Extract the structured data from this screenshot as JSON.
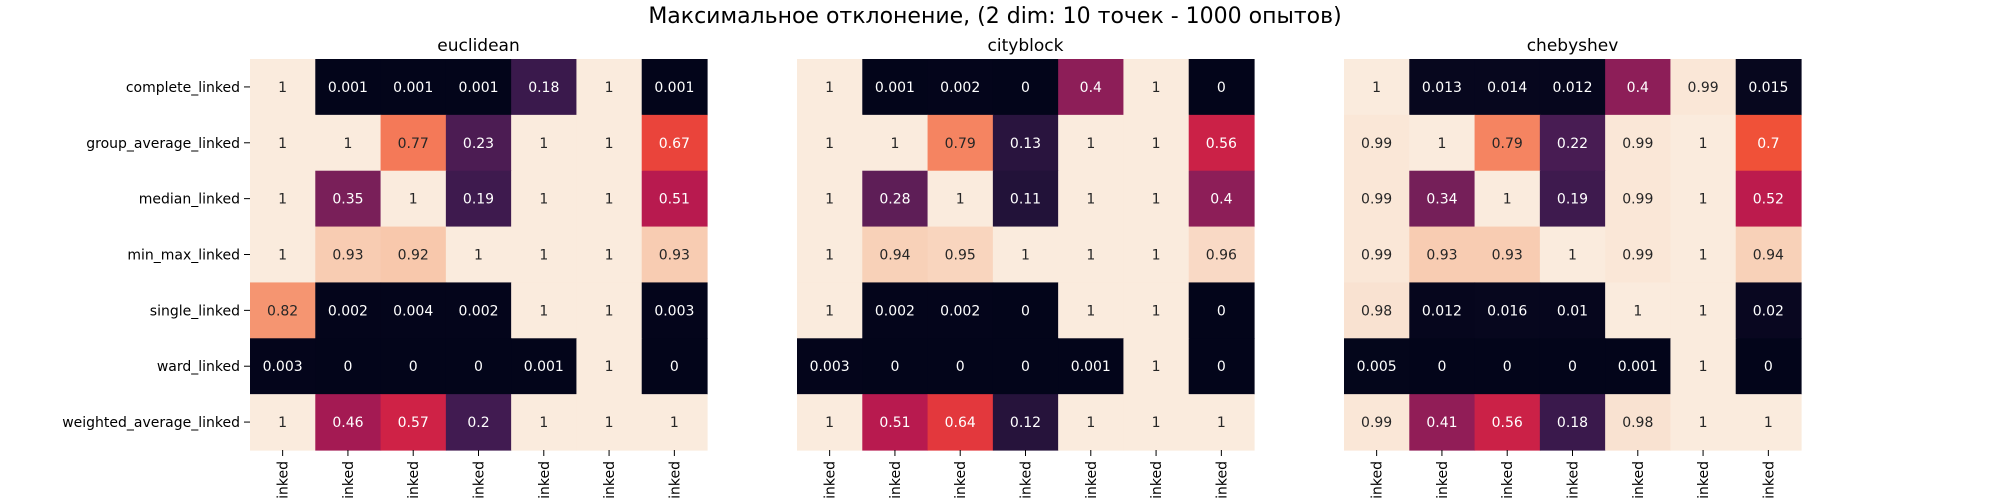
{
  "figure": {
    "title": "Максимальное отклонение, (2 dim: 10 точек - 1000 опытов)"
  },
  "chart_data": [
    {
      "type": "heatmap",
      "title": "euclidean",
      "rows": [
        "complete_linked",
        "group_average_linked",
        "median_linked",
        "min_max_linked",
        "single_linked",
        "ward_linked",
        "weighted_average_linked"
      ],
      "columns": [
        "linked",
        "linked",
        "linked",
        "linked",
        "linked",
        "linked",
        "linked"
      ],
      "values": [
        [
          1,
          0.001,
          0.001,
          0.001,
          0.18,
          1,
          0.001
        ],
        [
          1,
          1,
          0.77,
          0.23,
          1,
          1,
          0.67
        ],
        [
          1,
          0.35,
          1,
          0.19,
          1,
          1,
          0.51
        ],
        [
          1,
          0.93,
          0.92,
          1,
          1,
          1,
          0.93
        ],
        [
          0.82,
          0.002,
          0.004,
          0.002,
          1,
          1,
          0.003
        ],
        [
          0.003,
          0,
          0,
          0,
          0.001,
          1,
          0
        ],
        [
          1,
          0.46,
          0.57,
          0.2,
          1,
          1,
          1
        ]
      ],
      "vmin": 0,
      "vmax": 1,
      "annotated": true,
      "colormap": "rocket"
    },
    {
      "type": "heatmap",
      "title": "cityblock",
      "rows": [
        "complete_linked",
        "group_average_linked",
        "median_linked",
        "min_max_linked",
        "single_linked",
        "ward_linked",
        "weighted_average_linked"
      ],
      "columns": [
        "linked",
        "linked",
        "linked",
        "linked",
        "linked",
        "linked",
        "linked"
      ],
      "values": [
        [
          1,
          0.001,
          0.002,
          0,
          0.4,
          1,
          0
        ],
        [
          1,
          1,
          0.79,
          0.13,
          1,
          1,
          0.56
        ],
        [
          1,
          0.28,
          1,
          0.11,
          1,
          1,
          0.4
        ],
        [
          1,
          0.94,
          0.95,
          1,
          1,
          1,
          0.96
        ],
        [
          1,
          0.002,
          0.002,
          0,
          1,
          1,
          0
        ],
        [
          0.003,
          0,
          0,
          0,
          0.001,
          1,
          0
        ],
        [
          1,
          0.51,
          0.64,
          0.12,
          1,
          1,
          1
        ]
      ],
      "vmin": 0,
      "vmax": 1,
      "annotated": true,
      "colormap": "rocket"
    },
    {
      "type": "heatmap",
      "title": "chebyshev",
      "rows": [
        "complete_linked",
        "group_average_linked",
        "median_linked",
        "min_max_linked",
        "single_linked",
        "ward_linked",
        "weighted_average_linked"
      ],
      "columns": [
        "linked",
        "linked",
        "linked",
        "linked",
        "linked",
        "linked",
        "linked"
      ],
      "values": [
        [
          1,
          0.013,
          0.014,
          0.012,
          0.4,
          0.99,
          0.015
        ],
        [
          0.99,
          1,
          0.79,
          0.22,
          0.99,
          1,
          0.7
        ],
        [
          0.99,
          0.34,
          1,
          0.19,
          0.99,
          1,
          0.52
        ],
        [
          0.99,
          0.93,
          0.93,
          1,
          0.99,
          1,
          0.94
        ],
        [
          0.98,
          0.012,
          0.016,
          0.01,
          1,
          1,
          0.02
        ],
        [
          0.005,
          0,
          0,
          0,
          0.001,
          1,
          0
        ],
        [
          0.99,
          0.41,
          0.56,
          0.18,
          0.98,
          1,
          1
        ]
      ],
      "vmin": 0,
      "vmax": 1,
      "annotated": true,
      "colormap": "rocket"
    }
  ]
}
